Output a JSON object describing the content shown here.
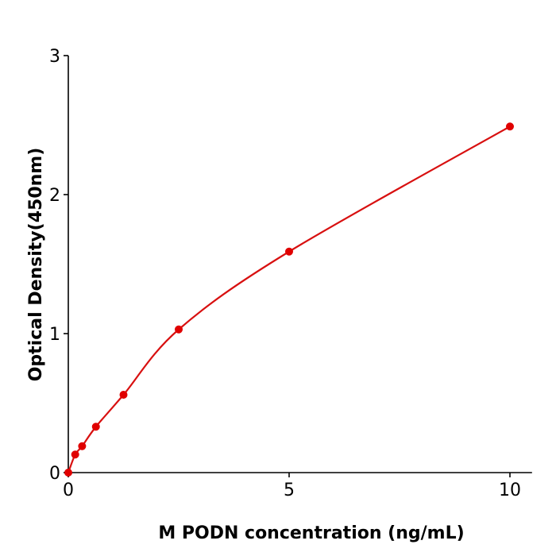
{
  "chart_data": {
    "type": "scatter",
    "title": "",
    "xlabel": "M  PODN concentration (ng/mL)",
    "ylabel": "Optical Density(450nm)",
    "xlim": [
      0,
      10.5
    ],
    "ylim": [
      0,
      3
    ],
    "xticks": [
      "0",
      "5",
      "10"
    ],
    "yticks": [
      "0",
      "1",
      "2",
      "3"
    ],
    "grid": false,
    "fit_line": "smooth curve",
    "color": "#e00000",
    "line_color": "#d81010",
    "series": [
      {
        "x": [
          0,
          0.156,
          0.3125,
          0.625,
          1.25,
          2.5,
          5,
          10
        ],
        "y": [
          0.0,
          0.13,
          0.19,
          0.33,
          0.56,
          1.03,
          1.59,
          2.49
        ]
      }
    ]
  }
}
